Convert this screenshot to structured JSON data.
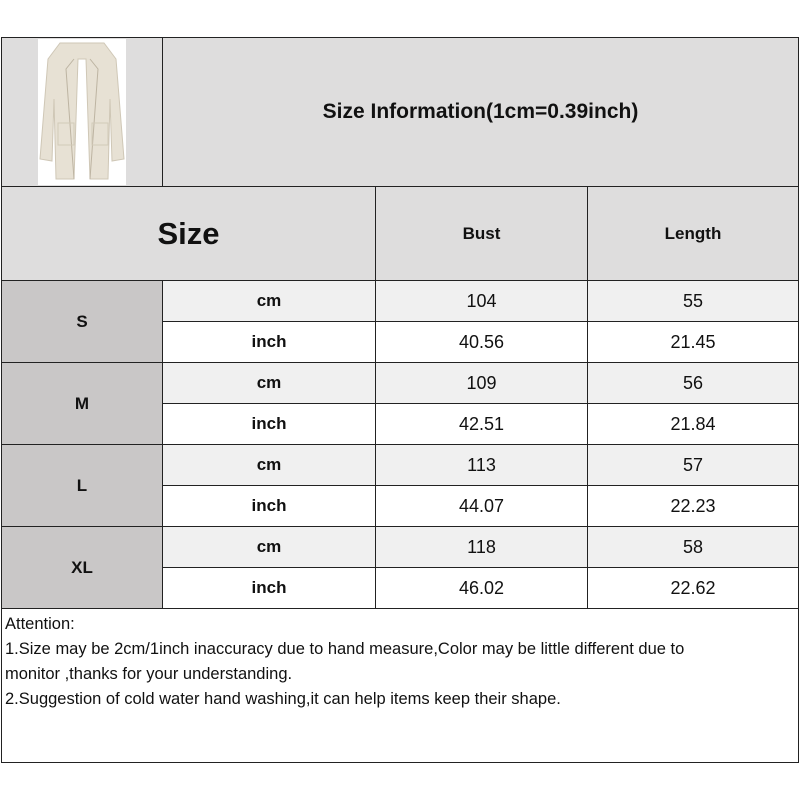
{
  "title": "Size Information(1cm=0.39inch)",
  "product_image": "beige-long-open-front-cardigan-coat",
  "header": {
    "size": "Size",
    "bust": "Bust",
    "length": "Length"
  },
  "rows": [
    {
      "size": "S",
      "cm": {
        "unit": "cm",
        "bust": "104",
        "length": "55"
      },
      "inch": {
        "unit": "inch",
        "bust": "40.56",
        "length": "21.45"
      }
    },
    {
      "size": "M",
      "cm": {
        "unit": "cm",
        "bust": "109",
        "length": "56"
      },
      "inch": {
        "unit": "inch",
        "bust": "42.51",
        "length": "21.84"
      }
    },
    {
      "size": "L",
      "cm": {
        "unit": "cm",
        "bust": "113",
        "length": "57"
      },
      "inch": {
        "unit": "inch",
        "bust": "44.07",
        "length": "22.23"
      }
    },
    {
      "size": "XL",
      "cm": {
        "unit": "cm",
        "bust": "118",
        "length": "58"
      },
      "inch": {
        "unit": "inch",
        "bust": "46.02",
        "length": "22.62"
      }
    }
  ],
  "notes": {
    "heading": "Attention:",
    "line1": "1.Size may be 2cm/1inch inaccuracy due to hand measure,Color may be little different due to",
    "line1b": "monitor ,thanks for your understanding.",
    "line2": "2.Suggestion of cold water hand washing,it can help items keep their shape."
  }
}
